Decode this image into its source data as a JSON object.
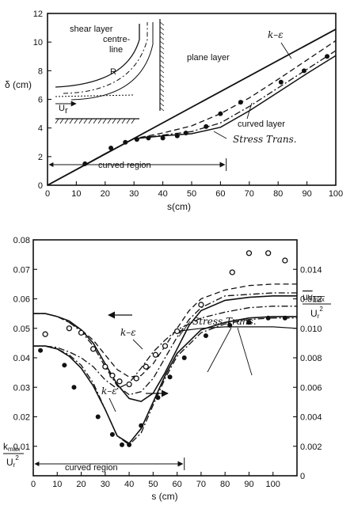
{
  "chart_data": [
    {
      "type": "line",
      "xlabel": "s(cm)",
      "ylabel": "δ (cm)",
      "xlim": [
        0,
        100
      ],
      "ylim": [
        0,
        12
      ],
      "xticks": [
        0,
        10,
        20,
        30,
        40,
        50,
        60,
        70,
        80,
        90,
        100
      ],
      "yticks": [
        0,
        2,
        4,
        6,
        8,
        10,
        12
      ],
      "grid": false,
      "annotations": {
        "plane": "plane layer",
        "curved": "curved layer",
        "ke": "k–ε",
        "stress": "Stress Trans.",
        "region": "curved region"
      },
      "inset": {
        "shear": "shear layer",
        "centre1": "centre-",
        "centre2": "line",
        "R": "R",
        "u": "U",
        "ur": "r"
      },
      "series": [
        {
          "x": [
            0,
            100
          ],
          "y": [
            0,
            10.9
          ]
        },
        {
          "x": [
            0,
            10,
            20,
            30,
            40,
            50,
            60,
            70,
            80,
            90,
            100
          ],
          "y": [
            0,
            1.1,
            2.2,
            3.25,
            3.65,
            4.15,
            5.0,
            6.1,
            7.4,
            8.75,
            10.1
          ]
        },
        {
          "x": [
            0,
            10,
            20,
            30,
            40,
            50,
            60,
            70,
            80,
            90,
            100
          ],
          "y": [
            0,
            1.1,
            2.2,
            3.25,
            3.5,
            3.75,
            4.35,
            5.5,
            6.8,
            8.1,
            9.4
          ]
        },
        {
          "x": [
            0,
            10,
            20,
            30,
            40,
            50,
            60,
            70,
            80,
            90,
            100
          ],
          "y": [
            0,
            1.1,
            2.2,
            3.25,
            3.45,
            3.6,
            4.05,
            5.2,
            6.5,
            7.8,
            9.05
          ]
        }
      ],
      "points": {
        "x": [
          13,
          22,
          27,
          31,
          35,
          40,
          45,
          48,
          55,
          60,
          67,
          81,
          89,
          97
        ],
        "y": [
          1.5,
          2.6,
          3.0,
          3.2,
          3.3,
          3.3,
          3.45,
          3.65,
          4.1,
          5.0,
          5.8,
          7.2,
          8.0,
          9.0
        ]
      },
      "region_x": [
        0,
        62
      ]
    },
    {
      "type": "line",
      "xlabel": "s (cm)",
      "ylabel_left_num": "k",
      "ylabel_left_sub": "max",
      "ylabel_left_den": "U",
      "ylabel_left_den_sub": "r",
      "ylabel_left_den_sup": "2",
      "ylabel_right_num": "uv",
      "ylabel_right_sub": "max",
      "ylabel_right_den": "U",
      "ylabel_right_den_sub": "r",
      "ylabel_right_den_sup": "2",
      "xlim": [
        0,
        110
      ],
      "ylim": [
        0,
        0.08
      ],
      "y2lim": [
        0,
        0.016
      ],
      "xticks": [
        0,
        10,
        20,
        30,
        40,
        50,
        60,
        70,
        80,
        90,
        100
      ],
      "yticks": [
        "0",
        "0.01",
        "0.02",
        "0.03",
        "0.04",
        "0.05",
        "0.06",
        "0.07",
        "0.08"
      ],
      "y2ticks": [
        "0",
        "0.002",
        "0.004",
        "0.006",
        "0.008",
        "0.010",
        "0.012",
        "0.014"
      ],
      "grid": false,
      "annotations": {
        "ke_upper": "k–ε",
        "ke_lower": "k–ε",
        "stress": "Stress Trans.",
        "region": "curved region"
      },
      "series_k": [
        {
          "x": [
            0,
            5,
            10,
            15,
            20,
            25,
            30,
            35,
            40,
            45,
            50,
            55,
            60,
            65,
            70,
            80,
            90,
            100,
            110
          ],
          "y": [
            0.055,
            0.055,
            0.054,
            0.052,
            0.0495,
            0.046,
            0.041,
            0.036,
            0.0335,
            0.034,
            0.038,
            0.044,
            0.05,
            0.056,
            0.06,
            0.063,
            0.0645,
            0.065,
            0.065
          ]
        },
        {
          "x": [
            0,
            5,
            10,
            15,
            20,
            25,
            30,
            35,
            40,
            45,
            50,
            55,
            60,
            65,
            70,
            80,
            90,
            100,
            110
          ],
          "y": [
            0.055,
            0.055,
            0.054,
            0.052,
            0.049,
            0.044,
            0.037,
            0.0305,
            0.0275,
            0.0285,
            0.033,
            0.04,
            0.047,
            0.053,
            0.057,
            0.061,
            0.0615,
            0.062,
            0.062
          ]
        },
        {
          "x": [
            0,
            5,
            10,
            15,
            20,
            25,
            30,
            35,
            40,
            45,
            50,
            55,
            60,
            65,
            70,
            80,
            90,
            100,
            110
          ],
          "y": [
            0.055,
            0.055,
            0.054,
            0.0525,
            0.0495,
            0.045,
            0.038,
            0.031,
            0.0262,
            0.0252,
            0.028,
            0.035,
            0.043,
            0.051,
            0.056,
            0.0595,
            0.0605,
            0.061,
            0.061
          ]
        }
      ],
      "points_k": {
        "x": [
          5,
          15,
          20,
          25,
          30,
          33,
          36,
          40,
          43,
          47,
          51,
          55,
          60,
          70,
          83,
          90,
          98,
          105
        ],
        "y": [
          0.048,
          0.05,
          0.0485,
          0.043,
          0.037,
          0.034,
          0.032,
          0.031,
          0.033,
          0.037,
          0.041,
          0.044,
          0.049,
          0.058,
          0.069,
          0.0755,
          0.0755,
          0.073
        ]
      },
      "series_uv": [
        {
          "x": [
            0,
            5,
            10,
            15,
            20,
            25,
            30,
            35,
            40,
            45,
            50,
            55,
            60,
            70,
            80,
            90,
            100,
            110
          ],
          "y": [
            0.0088,
            0.0088,
            0.0087,
            0.0084,
            0.008,
            0.0074,
            0.0065,
            0.0059,
            0.0063,
            0.0073,
            0.0084,
            0.0092,
            0.0099,
            0.0107,
            0.0111,
            0.0114,
            0.0115,
            0.0115
          ]
        },
        {
          "x": [
            0,
            5,
            10,
            15,
            20,
            25,
            30,
            35,
            40,
            45,
            50,
            55,
            60,
            70,
            80,
            90,
            100,
            110
          ],
          "y": [
            0.0088,
            0.0088,
            0.0086,
            0.0081,
            0.0073,
            0.0061,
            0.0045,
            0.0027,
            0.0022,
            0.0032,
            0.005,
            0.0068,
            0.0083,
            0.0099,
            0.0104,
            0.0107,
            0.0108,
            0.0108
          ]
        },
        {
          "x": [
            0,
            5,
            10,
            15,
            20,
            25,
            30,
            35,
            40,
            45,
            50,
            55,
            60,
            70,
            80,
            90,
            100,
            110
          ],
          "y": [
            0.0088,
            0.0088,
            0.0086,
            0.0082,
            0.0075,
            0.0063,
            0.0045,
            0.0027,
            0.0021,
            0.0029,
            0.0048,
            0.0066,
            0.0081,
            0.0097,
            0.0103,
            0.0106,
            0.0107,
            0.0107
          ]
        },
        {
          "x": [
            60,
            70,
            80,
            90,
            100,
            110
          ],
          "y": [
            0.0098,
            0.01,
            0.0101,
            0.0101,
            0.0101,
            0.01
          ]
        }
      ],
      "points_uv": {
        "x": [
          3,
          13,
          17,
          27,
          33,
          37,
          40,
          45,
          52,
          57,
          63,
          72,
          82,
          90,
          98,
          105
        ],
        "y": [
          0.0085,
          0.0075,
          0.006,
          0.004,
          0.0028,
          0.0021,
          0.0021,
          0.0034,
          0.0053,
          0.0067,
          0.008,
          0.0095,
          0.0102,
          0.0104,
          0.0107,
          0.0107
        ]
      },
      "region_x": [
        0,
        63
      ]
    }
  ]
}
